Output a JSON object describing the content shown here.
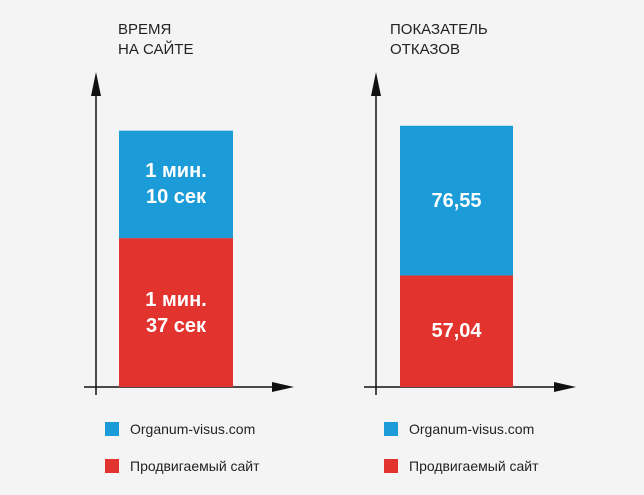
{
  "chart_data": [
    {
      "type": "stacked-bar",
      "title": "ВРЕМЯ\nНА САЙТЕ",
      "ylim": [
        0,
        200
      ],
      "series": [
        {
          "name": "Organum-visus.com",
          "color": "#1b9cd8",
          "values": [
            70
          ],
          "value_labels": [
            "1 мин.\n10 сек"
          ]
        },
        {
          "name": "Продвигаемый сайт",
          "color": "#e3332f",
          "values": [
            97
          ],
          "value_labels": [
            "1 мин.\n37 сек"
          ]
        }
      ]
    },
    {
      "type": "stacked-bar",
      "title": "ПОКАЗАТЕЛЬ\nОТКАЗОВ",
      "ylim": [
        0,
        157
      ],
      "series": [
        {
          "name": "Organum-visus.com",
          "color": "#1b9cd8",
          "values": [
            76.55
          ],
          "value_labels": [
            "76,55"
          ]
        },
        {
          "name": "Продвигаемый сайт",
          "color": "#e3332f",
          "values": [
            57.04
          ],
          "value_labels": [
            "57,04"
          ]
        }
      ]
    }
  ]
}
